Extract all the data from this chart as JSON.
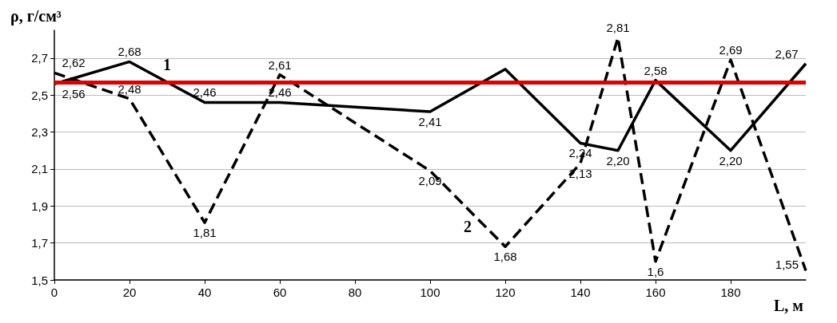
{
  "chart_data": {
    "type": "line",
    "xlabel": "L, м",
    "ylabel": "ρ, г/см³",
    "xlim": [
      0,
      200
    ],
    "xticks": [
      0,
      20,
      40,
      60,
      80,
      100,
      120,
      140,
      160,
      180
    ],
    "ylim": [
      1.5,
      2.85
    ],
    "yticks": [
      {
        "value": 1.5,
        "label": "1,5"
      },
      {
        "value": 1.7,
        "label": "1,7"
      },
      {
        "value": 1.9,
        "label": "1,9"
      },
      {
        "value": 2.1,
        "label": "2,1"
      },
      {
        "value": 2.3,
        "label": "2,3"
      },
      {
        "value": 2.5,
        "label": "2,5"
      },
      {
        "value": 2.7,
        "label": "2,7"
      }
    ],
    "grid": "y",
    "marker": "none",
    "legend": false,
    "x": [
      0,
      20,
      40,
      60,
      100,
      120,
      140,
      150,
      160,
      180,
      200
    ],
    "series": [
      {
        "name": "1",
        "color": "#000000",
        "line_style": "solid",
        "values": [
          2.56,
          2.68,
          2.46,
          2.46,
          2.41,
          2.64,
          2.24,
          2.2,
          2.58,
          2.2,
          2.67
        ],
        "value_labels": [
          "2,56",
          "2,68",
          "2,46",
          "2,46",
          "2,41",
          null,
          "2,24",
          "2,20",
          "2,58",
          "2,20",
          "2,67"
        ]
      },
      {
        "name": "2",
        "color": "#000000",
        "line_style": "dashed",
        "values": [
          2.62,
          2.48,
          1.81,
          2.61,
          2.09,
          1.68,
          2.13,
          2.81,
          1.6,
          2.69,
          1.55
        ],
        "value_labels": [
          "2,62",
          "2,48",
          "1,81",
          "2,61",
          "2,09",
          "1,68",
          "2,13",
          "2,81",
          "1,6",
          "2,69",
          "1,55"
        ]
      }
    ],
    "ref_lines": [
      {
        "axis": "y",
        "value": 2.57,
        "color": "#e00000"
      }
    ]
  }
}
